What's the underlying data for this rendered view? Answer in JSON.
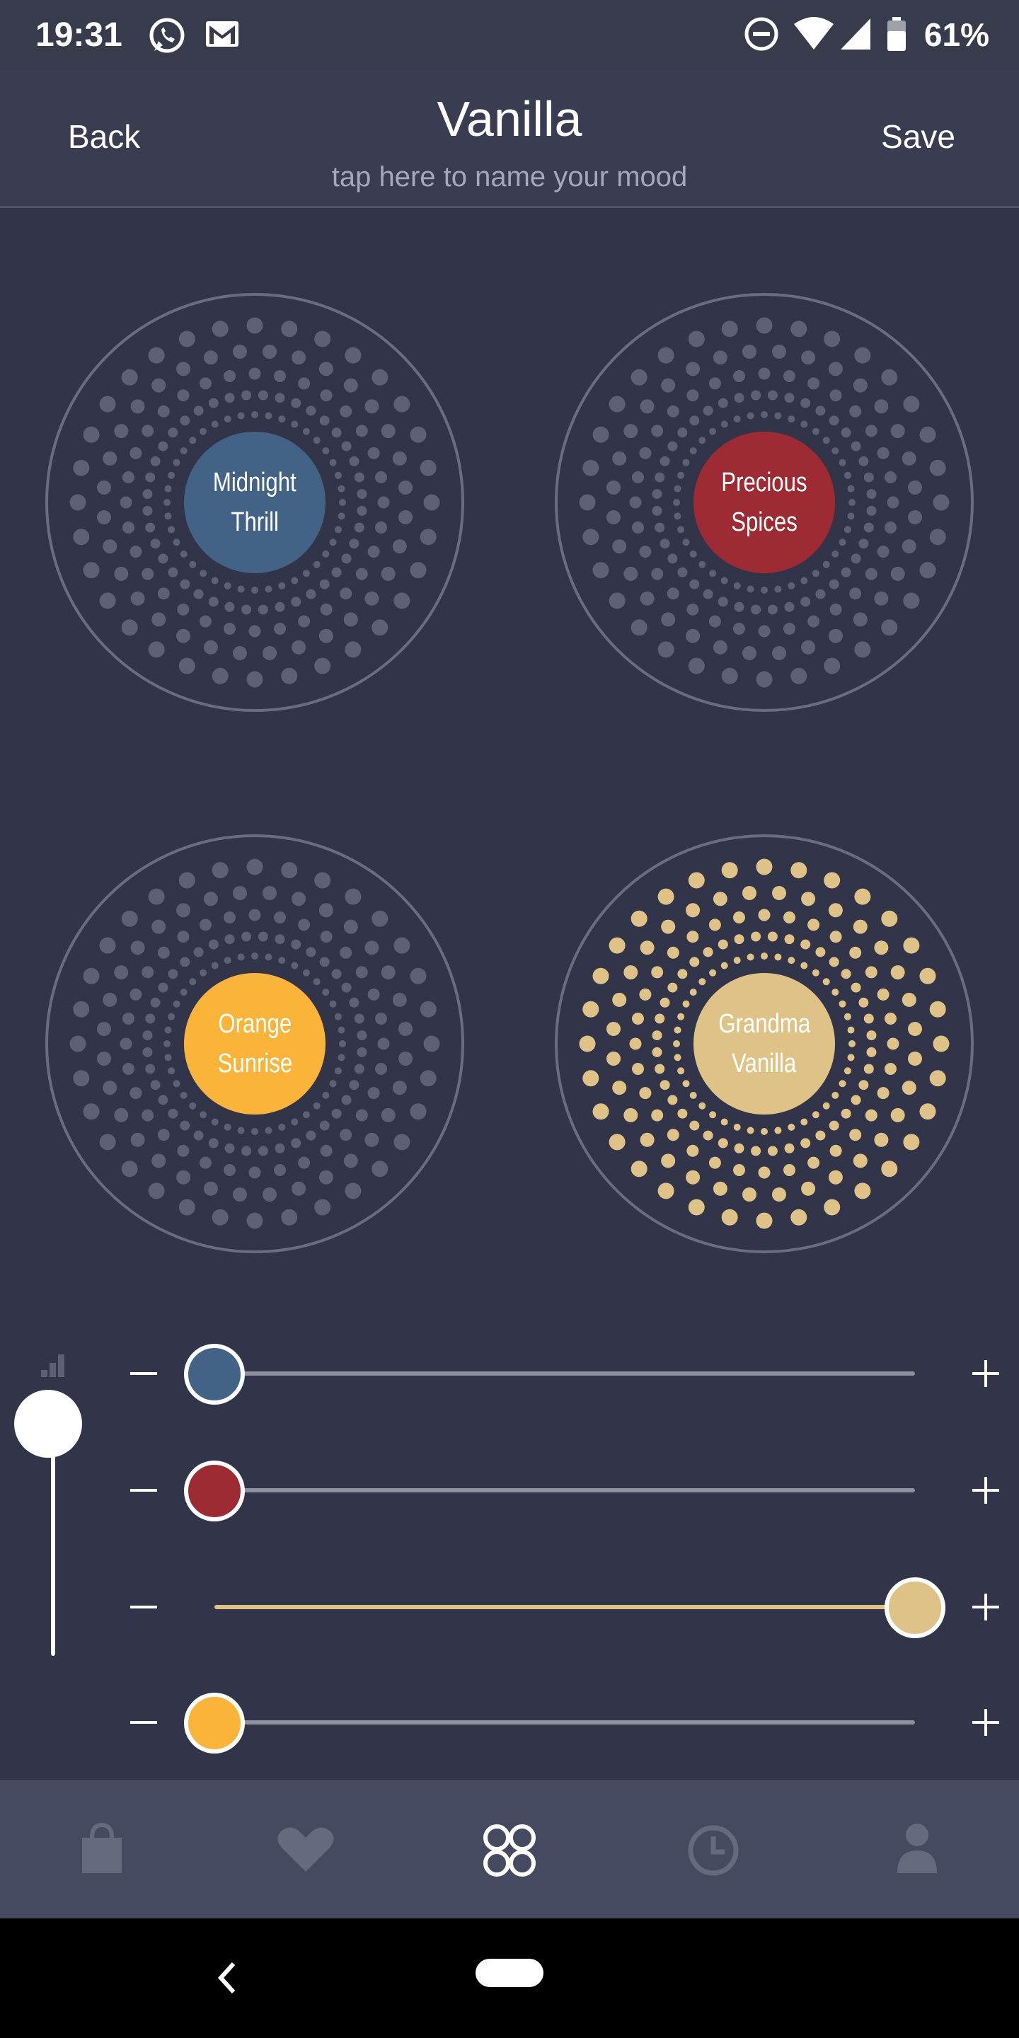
{
  "status_bar": {
    "time": "19:31",
    "battery_percent": "61%",
    "icons": [
      "whatsapp-icon",
      "gmail-icon",
      "do-not-disturb-icon",
      "wifi-icon",
      "signal-icon",
      "battery-icon"
    ]
  },
  "header": {
    "back_label": "Back",
    "title": "Vanilla",
    "subtitle": "tap here to name your mood",
    "save_label": "Save"
  },
  "moods": [
    {
      "line1": "Midnight",
      "line2": "Thrill",
      "color": "#436386",
      "active": false
    },
    {
      "line1": "Precious",
      "line2": "Spices",
      "color": "#9e2b33",
      "active": false
    },
    {
      "line1": "Orange",
      "line2": "Sunrise",
      "color": "#fbb43a",
      "active": false
    },
    {
      "line1": "Grandma",
      "line2": "Vanilla",
      "color": "#dec286",
      "active": true
    }
  ],
  "master_intensity": {
    "level": 1.0,
    "icon": "signal-strength-icon"
  },
  "mixers": [
    {
      "mood": "Midnight Thrill",
      "color": "#436386",
      "level": 0
    },
    {
      "mood": "Precious Spices",
      "color": "#9e2b33",
      "level": 0
    },
    {
      "mood": "Grandma Vanilla",
      "color": "#dec286",
      "level": 1
    },
    {
      "mood": "Orange Sunrise",
      "color": "#fbb43a",
      "level": 0
    }
  ],
  "tabs": [
    {
      "icon": "shopping-bag-icon",
      "active": false
    },
    {
      "icon": "heart-icon",
      "active": false
    },
    {
      "icon": "mix-circles-icon",
      "active": true
    },
    {
      "icon": "clock-icon",
      "active": false
    },
    {
      "icon": "person-icon",
      "active": false
    }
  ],
  "colors": {
    "background": "#323549",
    "inactive_dot": "#5e6173",
    "ring": "#6a6d7d",
    "active_dot": "#dec286"
  }
}
